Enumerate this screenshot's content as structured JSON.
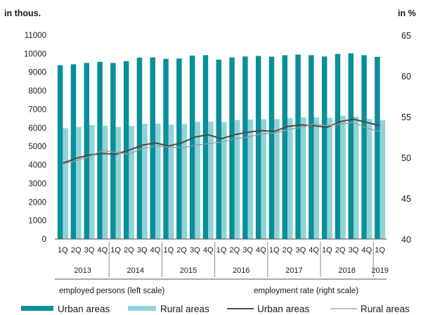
{
  "chart_data": {
    "type": "bar",
    "left_axis_label": "in thous.",
    "right_axis_label": "in %",
    "left_axis": {
      "ylim": [
        0,
        11000
      ],
      "ticks": [
        "0",
        "1000",
        "2000",
        "3000",
        "4000",
        "5000",
        "6000",
        "7000",
        "8000",
        "9000",
        "10000",
        "11000"
      ]
    },
    "right_axis": {
      "ylim": [
        40,
        65
      ],
      "ticks": [
        "40",
        "45",
        "50",
        "55",
        "60",
        "65"
      ]
    },
    "categories": [
      "1Q",
      "2Q",
      "3Q",
      "4Q",
      "1Q",
      "2Q",
      "3Q",
      "4Q",
      "1Q",
      "2Q",
      "3Q",
      "4Q",
      "1Q",
      "2Q",
      "3Q",
      "4Q",
      "1Q",
      "2Q",
      "3Q",
      "4Q",
      "1Q",
      "2Q",
      "3Q",
      "4Q",
      "1Q"
    ],
    "years": [
      {
        "label": "2013",
        "start": 0,
        "count": 4
      },
      {
        "label": "2014",
        "start": 4,
        "count": 4
      },
      {
        "label": "2015",
        "start": 8,
        "count": 4
      },
      {
        "label": "2016",
        "start": 12,
        "count": 4
      },
      {
        "label": "2017",
        "start": 16,
        "count": 4
      },
      {
        "label": "2018",
        "start": 20,
        "count": 4
      },
      {
        "label": "2019",
        "start": 24,
        "count": 1
      }
    ],
    "bar_series": [
      {
        "name": "Urban areas",
        "color": "#0a8f99",
        "values": [
          9380,
          9430,
          9500,
          9560,
          9500,
          9600,
          9790,
          9800,
          9720,
          9740,
          9900,
          9920,
          9680,
          9800,
          9850,
          9880,
          9840,
          9920,
          9950,
          9920,
          9850,
          9990,
          10020,
          9920,
          9830
        ]
      },
      {
        "name": "Rural areas",
        "color": "#8fd3d9",
        "values": [
          5980,
          6050,
          6150,
          6120,
          6050,
          6100,
          6220,
          6230,
          6180,
          6200,
          6320,
          6330,
          6300,
          6420,
          6450,
          6460,
          6470,
          6520,
          6560,
          6560,
          6550,
          6650,
          6600,
          6480,
          6420
        ]
      }
    ],
    "line_series": [
      {
        "name": "Urban areas",
        "color": "#4a4a4a",
        "width": 2,
        "values": [
          49.3,
          49.9,
          50.3,
          50.5,
          50.4,
          50.9,
          51.5,
          51.8,
          51.4,
          51.8,
          52.5,
          52.8,
          52.3,
          52.8,
          53.1,
          53.3,
          53.2,
          53.8,
          54.0,
          53.9,
          53.7,
          54.4,
          54.7,
          54.3,
          53.9
        ]
      },
      {
        "name": "Rural areas",
        "color": "#9a9a9a",
        "width": 1.3,
        "values": [
          49.2,
          49.6,
          50.1,
          50.9,
          50.6,
          50.4,
          51.1,
          51.4,
          51.3,
          51.2,
          51.5,
          51.7,
          51.9,
          52.3,
          52.5,
          52.9,
          53.0,
          53.4,
          53.7,
          54.1,
          53.9,
          54.1,
          54.3,
          53.6,
          53.2
        ]
      }
    ],
    "note_left": "employed persons (left scale)",
    "note_right": "employment rate (right scale)",
    "legend": [
      {
        "label": "Urban areas",
        "kind": "bar",
        "color": "#0a8f99"
      },
      {
        "label": "Rural areas",
        "kind": "bar",
        "color": "#8fd3d9"
      },
      {
        "label": "Urban areas",
        "kind": "line",
        "color": "#4a4a4a"
      },
      {
        "label": "Rural areas",
        "kind": "line",
        "color": "#9a9a9a"
      }
    ]
  }
}
